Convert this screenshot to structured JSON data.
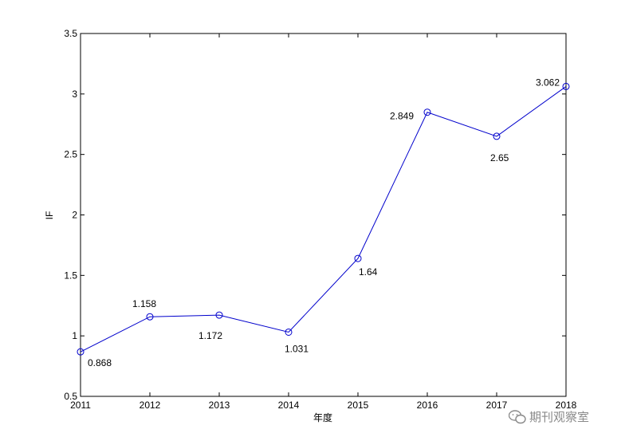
{
  "chart_data": {
    "type": "line",
    "x": [
      2011,
      2012,
      2013,
      2014,
      2015,
      2016,
      2017,
      2018
    ],
    "series": [
      {
        "values": [
          0.868,
          1.158,
          1.172,
          1.031,
          1.64,
          2.849,
          2.65,
          3.062
        ],
        "color": "#0000cc",
        "marker": "circle"
      }
    ],
    "data_labels": [
      "0.868",
      "1.158",
      "1.172",
      "1.031",
      "1.64",
      "2.849",
      "2.65",
      "3.062"
    ],
    "xlabel": "年度",
    "ylabel": "IF",
    "xlim": [
      2011,
      2018
    ],
    "ylim": [
      0.5,
      3.5
    ],
    "yticks": [
      0.5,
      1,
      1.5,
      2,
      2.5,
      3,
      3.5
    ],
    "ytick_labels": [
      "0.5",
      "1",
      "1.5",
      "2",
      "2.5",
      "3",
      "3.5"
    ],
    "xtick_labels": [
      "2011",
      "2012",
      "2013",
      "2014",
      "2015",
      "2016",
      "2017",
      "2018"
    ],
    "grid": false,
    "legend": "none"
  },
  "watermark": {
    "text": "期刊观察室",
    "icon": "wechat-icon"
  }
}
